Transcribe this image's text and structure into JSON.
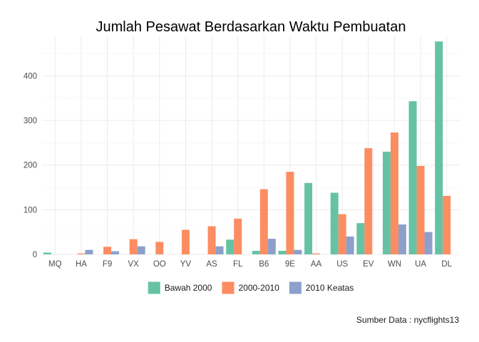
{
  "chart_data": {
    "type": "bar",
    "title": "Jumlah Pesawat Berdasarkan Waktu Pembuatan",
    "caption": "Sumber Data : nycflights13",
    "xlabel": "",
    "ylabel": "",
    "categories": [
      "MQ",
      "HA",
      "F9",
      "VX",
      "OO",
      "YV",
      "AS",
      "FL",
      "B6",
      "9E",
      "AA",
      "US",
      "EV",
      "WN",
      "UA",
      "DL"
    ],
    "series": [
      {
        "name": "Bawah 2000",
        "color": "#66c2a5",
        "values": [
          4,
          0,
          0,
          0,
          0,
          0,
          0,
          33,
          8,
          8,
          160,
          138,
          70,
          230,
          343,
          477
        ]
      },
      {
        "name": "2000-2010",
        "color": "#fc8d62",
        "values": [
          0,
          2,
          17,
          34,
          28,
          55,
          63,
          80,
          146,
          185,
          2,
          90,
          238,
          273,
          198,
          131
        ]
      },
      {
        "name": "2010 Keatas",
        "color": "#8da0cb",
        "values": [
          0,
          10,
          7,
          18,
          0,
          0,
          18,
          0,
          35,
          10,
          0,
          40,
          0,
          67,
          50,
          0
        ]
      }
    ],
    "ylim": [
      0,
      490
    ],
    "yticks": [
      0,
      100,
      200,
      300,
      400
    ],
    "grid": true,
    "legend_position": "bottom"
  }
}
